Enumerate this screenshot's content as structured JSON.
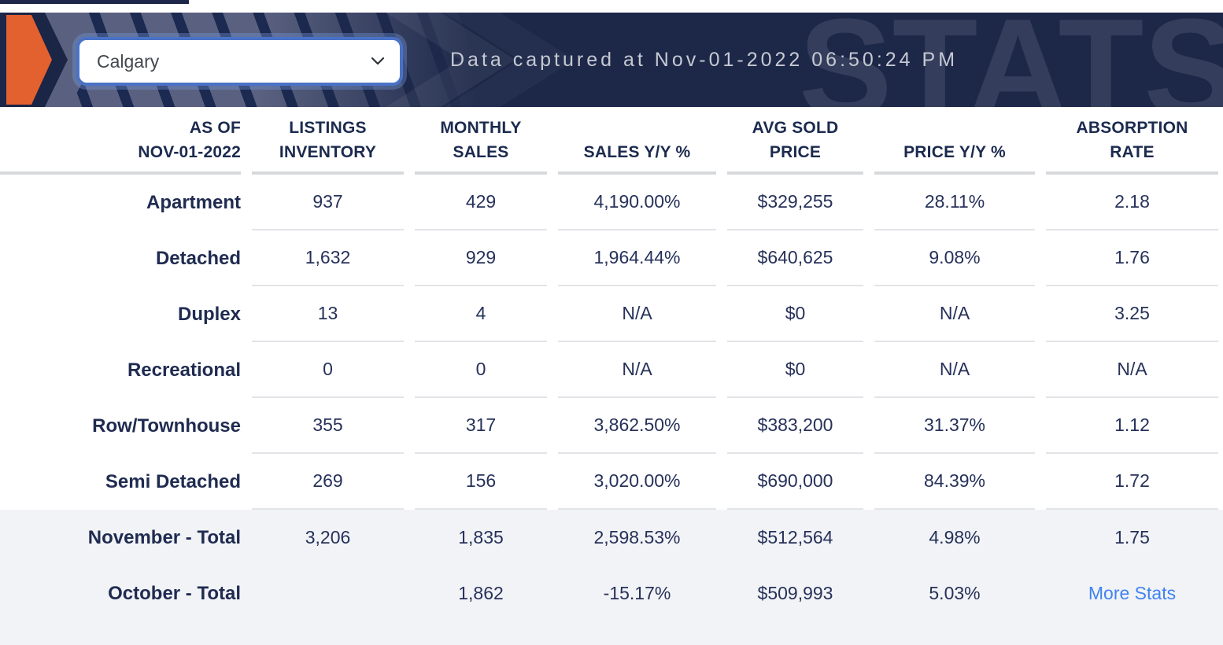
{
  "banner": {
    "selector": {
      "value": "Calgary"
    },
    "captured_text": "Data captured at Nov-01-2022 06:50:24 PM",
    "watermark": "STATS",
    "colors": {
      "navy_background": "#1d2849",
      "navy_dark": "#1b2545",
      "stripe_gray": "#5a6180",
      "arrow_orange": "#e2612f",
      "captured_text_color": "#c6c9d2",
      "selector_border_blue": "#4a72c6"
    }
  },
  "table": {
    "columns": [
      {
        "lines": [
          "AS OF",
          "NOV-01-2022"
        ]
      },
      {
        "lines": [
          "LISTINGS",
          "INVENTORY"
        ]
      },
      {
        "lines": [
          "MONTHLY",
          "SALES"
        ]
      },
      {
        "lines": [
          "SALES Y/Y %"
        ]
      },
      {
        "lines": [
          "AVG SOLD",
          "PRICE"
        ]
      },
      {
        "lines": [
          "PRICE Y/Y %"
        ]
      },
      {
        "lines": [
          "ABSORPTION",
          "RATE"
        ]
      }
    ],
    "rows": [
      {
        "label": "Apartment",
        "values": [
          "937",
          "429",
          "4,190.00%",
          "$329,255",
          "28.11%",
          "2.18"
        ]
      },
      {
        "label": "Detached",
        "values": [
          "1,632",
          "929",
          "1,964.44%",
          "$640,625",
          "9.08%",
          "1.76"
        ]
      },
      {
        "label": "Duplex",
        "values": [
          "13",
          "4",
          "N/A",
          "$0",
          "N/A",
          "3.25"
        ]
      },
      {
        "label": "Recreational",
        "values": [
          "0",
          "0",
          "N/A",
          "$0",
          "N/A",
          "N/A"
        ]
      },
      {
        "label": "Row/Townhouse",
        "values": [
          "355",
          "317",
          "3,862.50%",
          "$383,200",
          "31.37%",
          "1.12"
        ]
      },
      {
        "label": "Semi Detached",
        "values": [
          "269",
          "156",
          "3,020.00%",
          "$690,000",
          "84.39%",
          "1.72"
        ]
      }
    ],
    "totals": [
      {
        "label": "November - Total",
        "values": [
          "3,206",
          "1,835",
          "2,598.53%",
          "$512,564",
          "4.98%",
          "1.75"
        ]
      },
      {
        "label": "October - Total",
        "values": [
          "",
          "1,862",
          "-15.17%",
          "$509,993",
          "5.03%",
          ""
        ],
        "link": "More Stats"
      }
    ],
    "colors": {
      "text_navy": "#1f2b50",
      "separator": "#e3e4e8",
      "header_underline": "#d8d9dd",
      "totals_background": "#f2f3f6",
      "link_blue": "#4083f2"
    }
  }
}
